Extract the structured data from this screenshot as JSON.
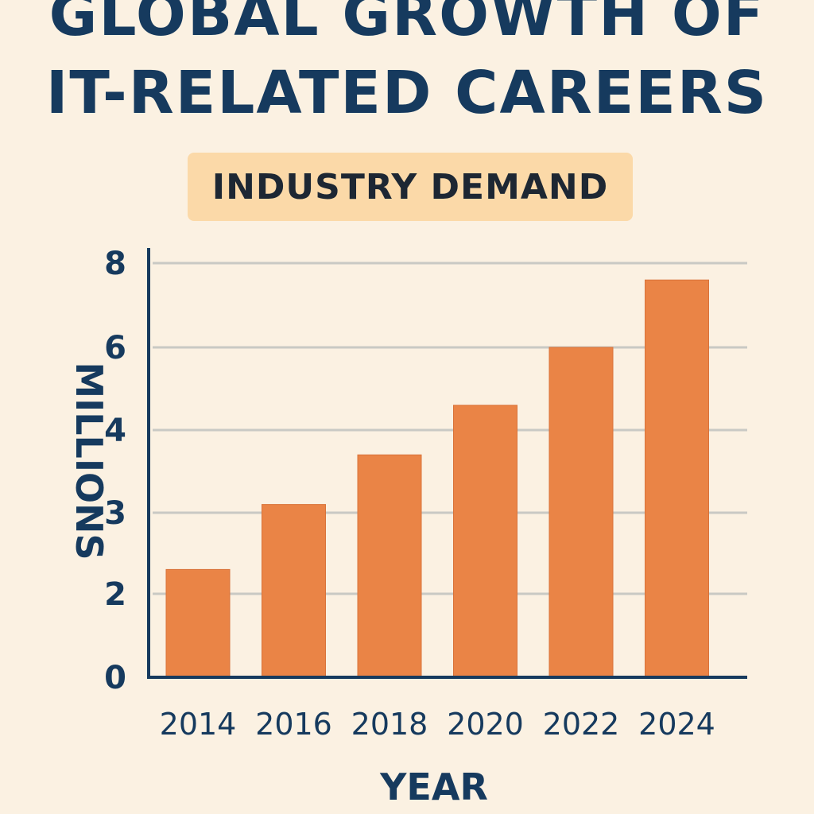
{
  "chart_data": {
    "type": "bar",
    "title_line1": "GLOBAL GROWTH OF",
    "title_line2": "IT-RELATED CAREERS",
    "subtitle": "INDUSTRY DEMAND",
    "categories": [
      "2014",
      "2016",
      "2018",
      "2020",
      "2022",
      "2024"
    ],
    "values": [
      2.3,
      3.1,
      3.7,
      4.6,
      6.0,
      7.6
    ],
    "yticks": [
      0,
      2,
      3,
      4,
      6,
      8
    ],
    "ylim": [
      0,
      8
    ],
    "xlabel": "YEAR",
    "ylabel": "MILLIONS",
    "grid": true,
    "colors": {
      "bar": "#ea8446",
      "bar_edge": "#d9733a",
      "grid": "#c9c9c4",
      "axis": "#163a5e",
      "background": "#fbf1e2",
      "subtitle_bg": "#fbd9a8"
    }
  }
}
